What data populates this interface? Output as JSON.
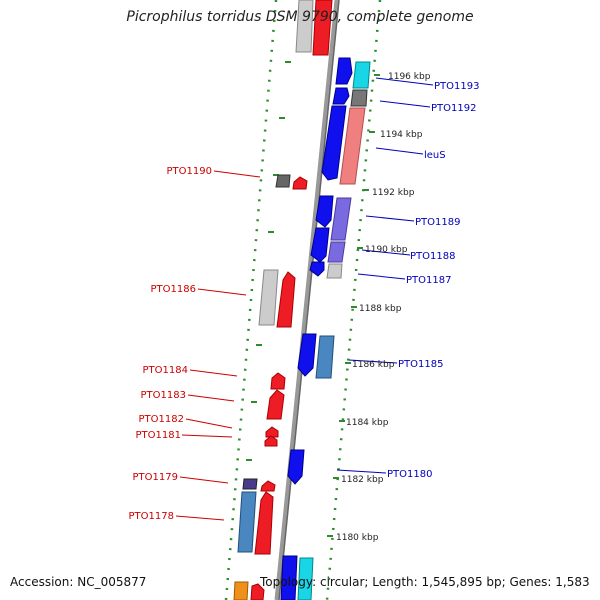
{
  "title": "Picrophilus torridus DSM 9790, complete genome",
  "accession_text": "Accession: NC_005877",
  "topology_text": "Topology: circular; Length: 1,545,895 bp; Genes: 1,583",
  "colors": {
    "forward_label": "#cc0000",
    "reverse_label": "#0000bb",
    "backbone": "#888888",
    "dots": "#2e8b2e"
  },
  "tick_labels": [
    {
      "label": "1196 kbp",
      "kbp": 1196
    },
    {
      "label": "1194 kbp",
      "kbp": 1194
    },
    {
      "label": "1192 kbp",
      "kbp": 1192
    },
    {
      "label": "1190 kbp",
      "kbp": 1190
    },
    {
      "label": "1188 kbp",
      "kbp": 1188
    },
    {
      "label": "1186 kbp",
      "kbp": 1186
    },
    {
      "label": "1184 kbp",
      "kbp": 1184
    },
    {
      "label": "1182 kbp",
      "kbp": 1182
    },
    {
      "label": "1180 kbp",
      "kbp": 1180
    }
  ],
  "reverse_labels": [
    {
      "label": "PTO1193"
    },
    {
      "label": "PTO1192"
    },
    {
      "label": "leuS"
    },
    {
      "label": "PTO1189"
    },
    {
      "label": "PTO1188"
    },
    {
      "label": "PTO1187"
    },
    {
      "label": "PTO1185"
    },
    {
      "label": "PTO1180"
    }
  ],
  "forward_labels": [
    {
      "label": "PTO1190"
    },
    {
      "label": "PTO1186"
    },
    {
      "label": "PTO1184"
    },
    {
      "label": "PTO1183"
    },
    {
      "label": "PTO1182"
    },
    {
      "label": "PTO1181"
    },
    {
      "label": "PTO1179"
    },
    {
      "label": "PTO1178"
    }
  ]
}
